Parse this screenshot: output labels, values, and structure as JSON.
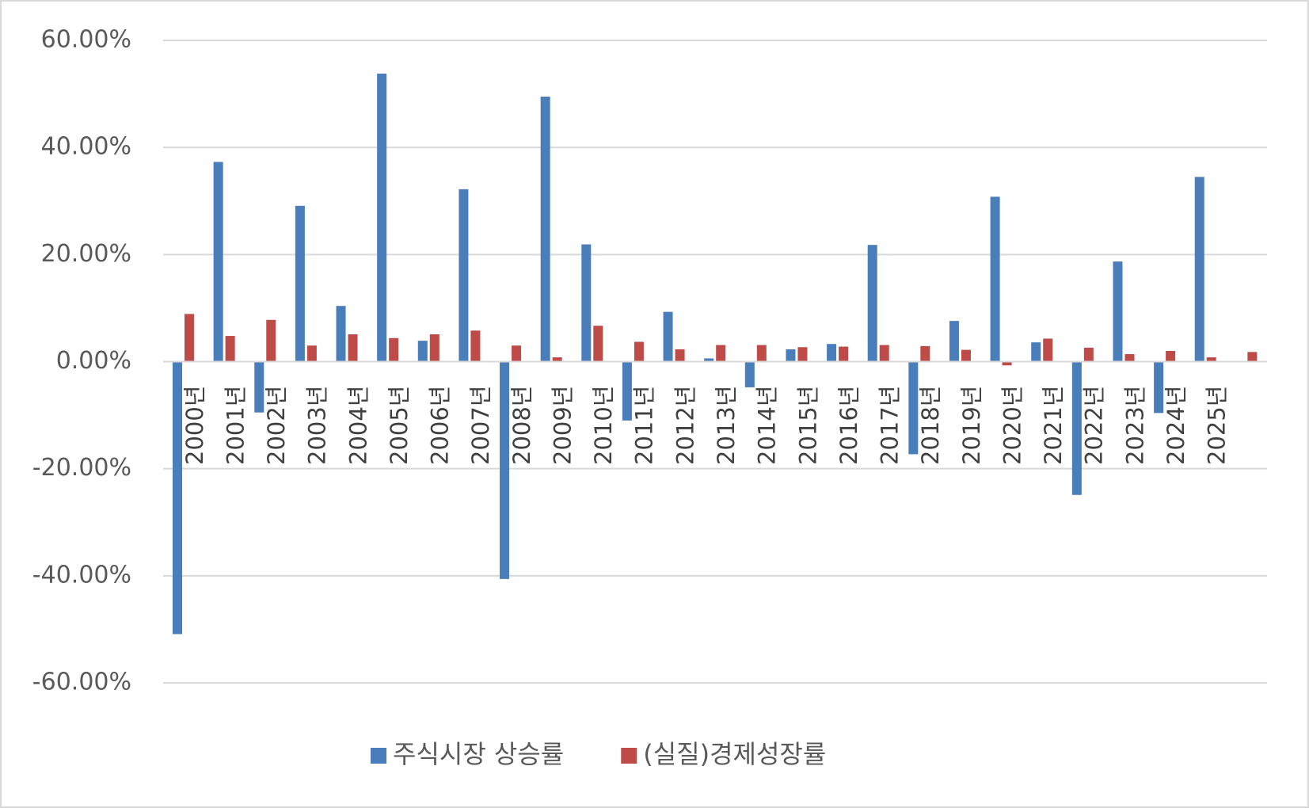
{
  "chart_data": {
    "type": "bar",
    "categories": [
      "2000년",
      "2001년",
      "2002년",
      "2003년",
      "2004년",
      "2005년",
      "2006년",
      "2007년",
      "2008년",
      "2009년",
      "2010년",
      "2011년",
      "2012년",
      "2013년",
      "2014년",
      "2015년",
      "2016년",
      "2017년",
      "2018년",
      "2019년",
      "2020년",
      "2021년",
      "2022년",
      "2023년",
      "2024년",
      "2025년",
      null
    ],
    "series": [
      {
        "name": "주식시장 상승률",
        "color": "#4a7ebb",
        "values": [
          -50.9,
          37.3,
          -9.5,
          29.1,
          10.4,
          53.8,
          3.9,
          32.2,
          -40.6,
          49.5,
          21.9,
          -11.0,
          9.3,
          0.6,
          -4.8,
          2.3,
          3.3,
          21.8,
          -17.3,
          7.6,
          30.8,
          3.6,
          -24.9,
          18.7,
          -9.6,
          34.5,
          null
        ]
      },
      {
        "name": "(실질)경제성장률",
        "color": "#be4b48",
        "values": [
          8.9,
          4.8,
          7.8,
          3.0,
          5.1,
          4.4,
          5.1,
          5.8,
          3.0,
          0.8,
          6.7,
          3.7,
          2.3,
          3.1,
          3.1,
          2.7,
          2.8,
          3.1,
          2.9,
          2.2,
          -0.7,
          4.3,
          2.6,
          1.4,
          2.0,
          0.8,
          1.8
        ]
      }
    ],
    "ylim": [
      -60,
      60
    ],
    "yticks": [
      {
        "value": -60,
        "label": "-60.00%"
      },
      {
        "value": -40,
        "label": "-40.00%"
      },
      {
        "value": -20,
        "label": "-20.00%"
      },
      {
        "value": 0,
        "label": "0.00%"
      },
      {
        "value": 20,
        "label": "20.00%"
      },
      {
        "value": 40,
        "label": "40.00%"
      },
      {
        "value": 60,
        "label": "60.00%"
      }
    ],
    "grid": true,
    "legend": "bottom"
  }
}
